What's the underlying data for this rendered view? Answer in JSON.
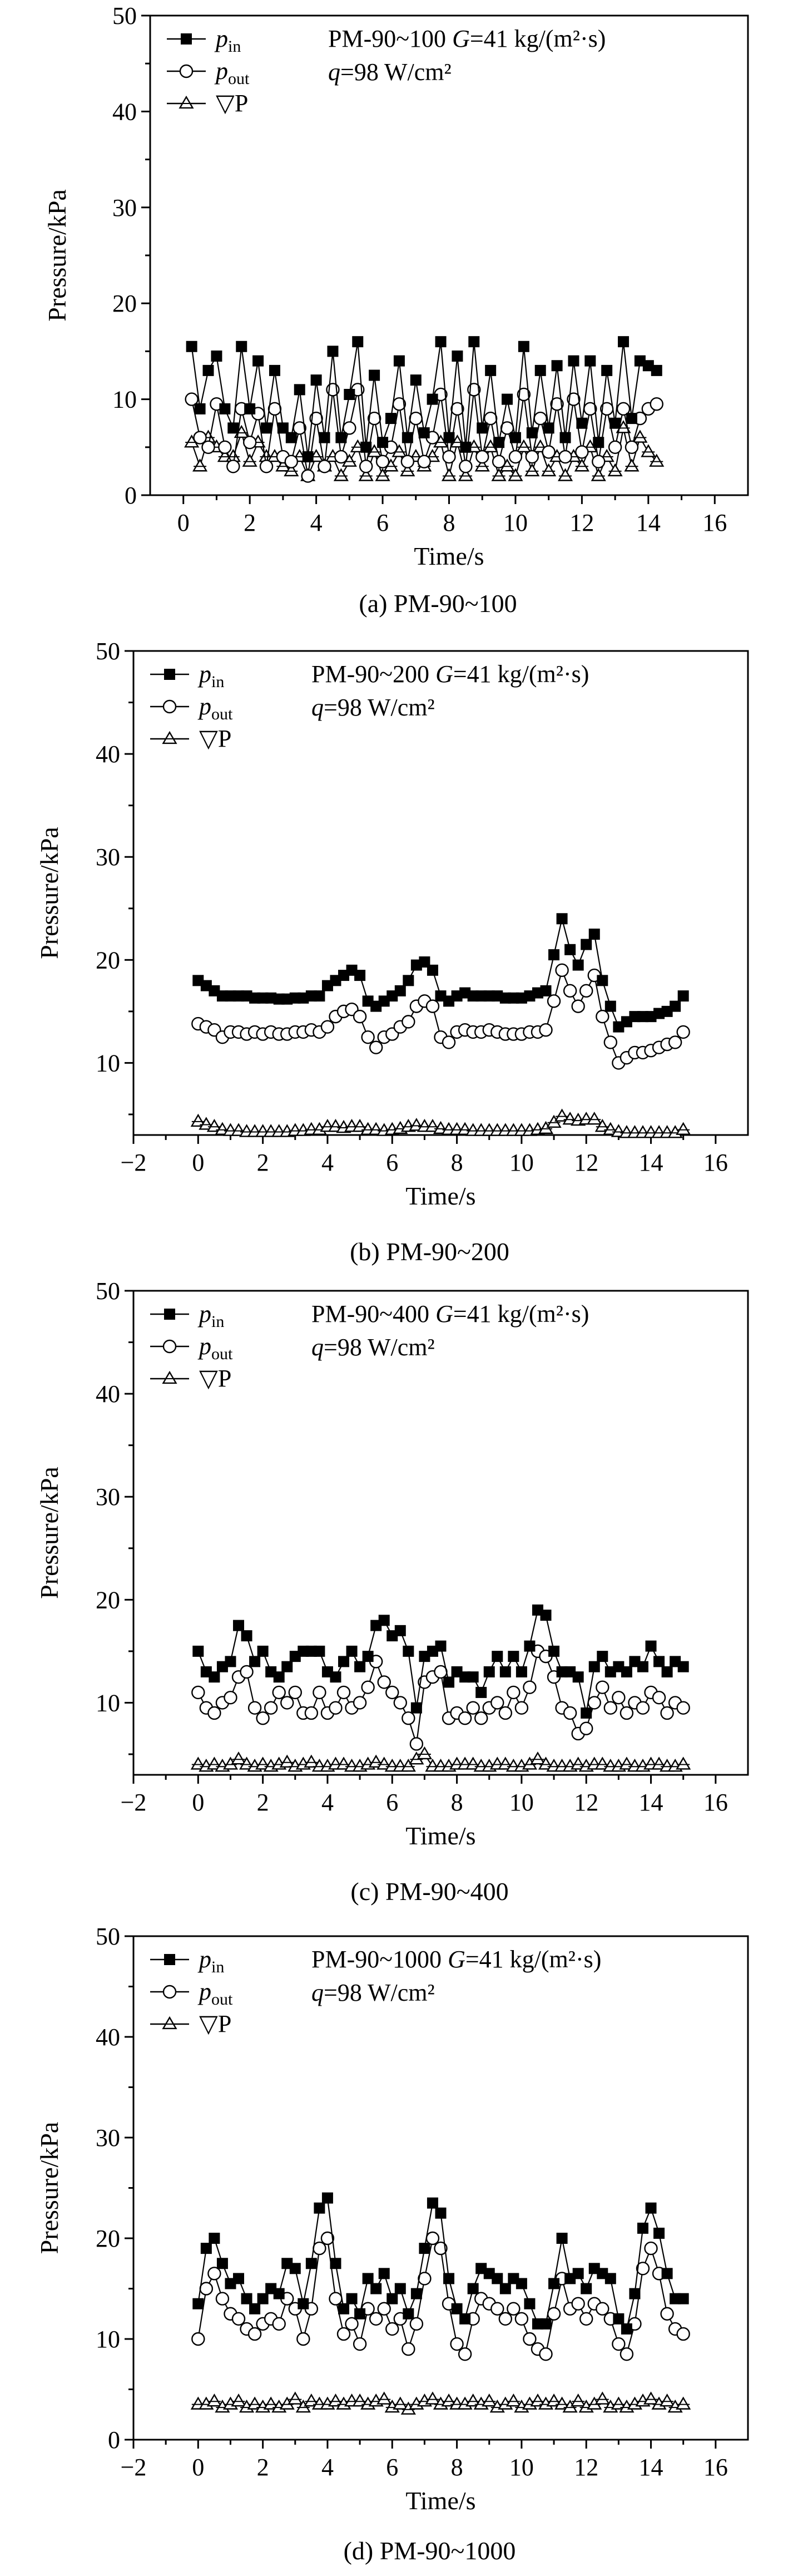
{
  "chart_data": [
    {
      "type": "line",
      "caption": "(a) PM-90~100",
      "xlabel": "Time/s",
      "ylabel": "Pressure/kPa",
      "xlim": [
        -1,
        17
      ],
      "ylim": [
        0,
        50
      ],
      "xticks": [
        0,
        2,
        4,
        6,
        8,
        10,
        12,
        14,
        16
      ],
      "xtick_labels": [
        "0",
        "2",
        "4",
        "6",
        "8",
        "10",
        "12",
        "14",
        "16"
      ],
      "yticks": [
        0,
        10,
        20,
        30,
        40,
        50
      ],
      "ytick_labels": [
        "0",
        "10",
        "20",
        "30",
        "40",
        "50"
      ],
      "annotation": {
        "model": "PM-90~100",
        "g_sym": "G",
        "g_val": "=41 kg/(m²·s)",
        "q_sym": "q",
        "q_val": "=98 W/cm²"
      },
      "legend": [
        {
          "sym": "p",
          "sub": "in"
        },
        {
          "sym": "p",
          "sub": "out"
        },
        {
          "sym": "▽P",
          "sub": ""
        }
      ],
      "series": [
        {
          "name": "p_in",
          "marker": "square",
          "x_start": 0.25,
          "x_step": 0.25,
          "values": [
            15.5,
            9.0,
            13.0,
            14.5,
            9.0,
            7.0,
            15.5,
            9.0,
            14.0,
            7.0,
            13.0,
            7.0,
            6.0,
            11.0,
            4.0,
            12.0,
            6.0,
            15.0,
            6.0,
            10.5,
            16.0,
            5.0,
            12.5,
            5.5,
            8.0,
            14.0,
            6.0,
            12.0,
            6.5,
            10.0,
            16.0,
            6.0,
            14.5,
            5.0,
            16.0,
            7.0,
            13.0,
            5.5,
            10.0,
            6.0,
            15.5,
            6.5,
            13.0,
            7.0,
            13.5,
            6.0,
            14.0,
            7.5,
            14.0,
            5.5,
            13.0,
            7.5,
            16.0,
            8.0,
            14.0,
            13.5,
            13.0
          ]
        },
        {
          "name": "p_out",
          "marker": "circle",
          "x_start": 0.25,
          "x_step": 0.25,
          "values": [
            10.0,
            6.0,
            5.0,
            9.5,
            5.0,
            3.0,
            9.0,
            5.5,
            8.5,
            3.0,
            9.0,
            4.0,
            3.5,
            7.0,
            2.0,
            8.0,
            3.0,
            11.0,
            4.0,
            7.0,
            11.0,
            3.0,
            8.0,
            3.5,
            5.0,
            9.5,
            3.5,
            8.0,
            3.5,
            6.0,
            10.5,
            4.0,
            9.0,
            3.0,
            11.0,
            4.0,
            8.0,
            3.5,
            7.0,
            4.0,
            10.5,
            4.0,
            8.0,
            4.5,
            9.5,
            4.0,
            10.0,
            4.5,
            9.0,
            3.5,
            9.0,
            5.0,
            9.0,
            5.0,
            8.0,
            9.0,
            9.5
          ]
        },
        {
          "name": "dP",
          "marker": "triangle",
          "x_start": 0.25,
          "x_step": 0.25,
          "values": [
            5.5,
            3.0,
            6.0,
            5.0,
            4.0,
            4.0,
            6.5,
            3.5,
            5.5,
            4.0,
            4.0,
            3.0,
            2.5,
            4.0,
            2.0,
            4.0,
            3.0,
            4.0,
            2.0,
            3.5,
            5.0,
            2.0,
            4.5,
            2.0,
            3.0,
            4.5,
            2.5,
            4.0,
            3.0,
            4.0,
            5.5,
            2.0,
            5.5,
            2.0,
            5.0,
            3.0,
            5.0,
            2.0,
            3.0,
            2.0,
            5.0,
            2.5,
            5.0,
            2.5,
            4.0,
            2.0,
            4.0,
            3.0,
            5.0,
            2.0,
            4.0,
            2.5,
            7.0,
            3.0,
            6.0,
            4.5,
            3.5
          ]
        }
      ]
    },
    {
      "type": "line",
      "caption": "(b) PM-90~200",
      "xlabel": "Time/s",
      "ylabel": "Pressure/kPa",
      "xlim": [
        -2,
        17
      ],
      "ylim": [
        3,
        50
      ],
      "xticks": [
        -2,
        0,
        2,
        4,
        6,
        8,
        10,
        12,
        14,
        16
      ],
      "xtick_labels": [
        "−2",
        "0",
        "2",
        "4",
        "6",
        "8",
        "10",
        "12",
        "14",
        "16"
      ],
      "yticks": [
        10,
        20,
        30,
        40,
        50
      ],
      "ytick_labels": [
        "10",
        "20",
        "30",
        "40",
        "50"
      ],
      "annotation": {
        "model": "PM-90~200",
        "g_sym": "G",
        "g_val": "=41 kg/(m²·s)",
        "q_sym": "q",
        "q_val": "=98 W/cm²"
      },
      "legend": [
        {
          "sym": "p",
          "sub": "in"
        },
        {
          "sym": "p",
          "sub": "out"
        },
        {
          "sym": "▽P",
          "sub": ""
        }
      ],
      "series": [
        {
          "name": "p_in",
          "marker": "square",
          "x_start": 0.0,
          "x_step": 0.25,
          "values": [
            18.0,
            17.5,
            17.0,
            16.5,
            16.5,
            16.5,
            16.5,
            16.3,
            16.3,
            16.3,
            16.2,
            16.2,
            16.3,
            16.3,
            16.5,
            16.5,
            17.5,
            18.0,
            18.5,
            19.0,
            18.5,
            16.0,
            15.5,
            16.0,
            16.5,
            17.0,
            18.0,
            19.5,
            19.8,
            19.0,
            16.5,
            16.0,
            16.5,
            16.8,
            16.5,
            16.5,
            16.5,
            16.5,
            16.3,
            16.3,
            16.3,
            16.5,
            16.8,
            17.0,
            20.5,
            24.0,
            21.0,
            19.5,
            21.5,
            22.5,
            18.0,
            15.5,
            13.5,
            14.0,
            14.5,
            14.5,
            14.5,
            14.8,
            15.0,
            15.5,
            16.5
          ]
        },
        {
          "name": "p_out",
          "marker": "circle",
          "x_start": 0.0,
          "x_step": 0.25,
          "values": [
            13.8,
            13.5,
            13.2,
            12.5,
            13.0,
            13.0,
            12.8,
            13.0,
            12.8,
            13.0,
            12.8,
            12.8,
            13.0,
            13.0,
            13.2,
            13.0,
            13.5,
            14.5,
            15.0,
            15.2,
            14.5,
            12.5,
            11.5,
            12.5,
            12.8,
            13.5,
            14.0,
            15.5,
            16.0,
            15.5,
            12.5,
            12.0,
            13.0,
            13.2,
            13.0,
            13.0,
            13.2,
            13.0,
            12.8,
            12.8,
            12.8,
            13.0,
            13.0,
            13.2,
            16.0,
            19.0,
            17.0,
            15.5,
            17.0,
            18.5,
            14.5,
            12.0,
            10.0,
            10.5,
            11.0,
            11.0,
            11.2,
            11.5,
            11.8,
            12.0,
            13.0
          ]
        },
        {
          "name": "dP",
          "marker": "triangle",
          "x_start": 0.0,
          "x_step": 0.25,
          "values": [
            4.3,
            4.0,
            3.8,
            3.5,
            3.4,
            3.4,
            3.3,
            3.3,
            3.3,
            3.3,
            3.3,
            3.3,
            3.4,
            3.4,
            3.5,
            3.5,
            3.8,
            3.8,
            3.7,
            3.8,
            3.8,
            3.5,
            3.5,
            3.4,
            3.5,
            3.6,
            3.8,
            3.9,
            3.8,
            3.8,
            3.6,
            3.5,
            3.5,
            3.5,
            3.4,
            3.4,
            3.4,
            3.4,
            3.4,
            3.4,
            3.4,
            3.4,
            3.5,
            3.6,
            4.2,
            4.8,
            4.5,
            4.4,
            4.5,
            4.5,
            3.8,
            3.5,
            3.3,
            3.2,
            3.2,
            3.2,
            3.2,
            3.2,
            3.2,
            3.2,
            3.5
          ]
        }
      ]
    },
    {
      "type": "line",
      "caption": "(c) PM-90~400",
      "xlabel": "Time/s",
      "ylabel": "Pressure/kPa",
      "xlim": [
        -2,
        17
      ],
      "ylim": [
        3,
        50
      ],
      "xticks": [
        -2,
        0,
        2,
        4,
        6,
        8,
        10,
        12,
        14,
        16
      ],
      "xtick_labels": [
        "−2",
        "0",
        "2",
        "4",
        "6",
        "8",
        "10",
        "12",
        "14",
        "16"
      ],
      "yticks": [
        10,
        20,
        30,
        40,
        50
      ],
      "ytick_labels": [
        "10",
        "20",
        "30",
        "40",
        "50"
      ],
      "annotation": {
        "model": "PM-90~400",
        "g_sym": "G",
        "g_val": "=41 kg/(m²·s)",
        "q_sym": "q",
        "q_val": "=98 W/cm²"
      },
      "legend": [
        {
          "sym": "p",
          "sub": "in"
        },
        {
          "sym": "p",
          "sub": "out"
        },
        {
          "sym": "▽P",
          "sub": ""
        }
      ],
      "series": [
        {
          "name": "p_in",
          "marker": "square",
          "x_start": 0.0,
          "x_step": 0.25,
          "values": [
            15.0,
            13.0,
            12.5,
            13.5,
            14.0,
            17.5,
            16.5,
            14.0,
            15.0,
            13.0,
            12.5,
            13.5,
            14.5,
            15.0,
            15.0,
            15.0,
            13.0,
            12.5,
            14.0,
            15.0,
            13.5,
            14.5,
            17.5,
            18.0,
            16.5,
            17.0,
            15.0,
            9.5,
            14.5,
            15.0,
            15.5,
            12.0,
            13.0,
            12.5,
            12.5,
            11.0,
            13.0,
            14.5,
            13.0,
            14.5,
            13.0,
            15.5,
            19.0,
            18.5,
            15.0,
            13.0,
            13.0,
            12.5,
            9.0,
            13.5,
            14.5,
            13.0,
            13.5,
            13.0,
            14.0,
            13.5,
            15.5,
            14.0,
            13.0,
            14.0,
            13.5
          ]
        },
        {
          "name": "p_out",
          "marker": "circle",
          "x_start": 0.0,
          "x_step": 0.25,
          "values": [
            11.0,
            9.5,
            9.0,
            10.0,
            10.5,
            12.5,
            13.0,
            9.5,
            8.5,
            9.5,
            11.0,
            10.0,
            11.0,
            9.0,
            9.0,
            11.0,
            9.0,
            9.5,
            11.0,
            9.5,
            10.0,
            11.5,
            14.0,
            12.0,
            11.0,
            10.0,
            8.5,
            6.0,
            12.0,
            12.5,
            13.0,
            8.5,
            9.0,
            8.5,
            9.5,
            8.5,
            9.5,
            10.0,
            9.0,
            11.0,
            9.5,
            11.5,
            15.0,
            14.5,
            12.5,
            9.5,
            9.0,
            7.0,
            7.5,
            10.0,
            11.5,
            9.5,
            10.5,
            9.0,
            10.0,
            9.5,
            11.0,
            10.5,
            9.0,
            10.0,
            9.5
          ]
        },
        {
          "name": "dP",
          "marker": "triangle",
          "x_start": 0.0,
          "x_step": 0.25,
          "values": [
            4.0,
            3.8,
            4.0,
            3.8,
            4.0,
            4.5,
            4.0,
            3.8,
            4.0,
            3.8,
            4.0,
            4.2,
            3.8,
            4.0,
            4.2,
            3.8,
            3.8,
            4.0,
            4.0,
            3.8,
            3.8,
            4.0,
            4.2,
            4.0,
            3.8,
            3.8,
            3.8,
            4.5,
            5.0,
            3.8,
            3.8,
            3.8,
            4.0,
            4.0,
            4.0,
            3.8,
            3.8,
            4.0,
            4.0,
            3.8,
            3.8,
            4.0,
            4.5,
            4.0,
            3.8,
            3.8,
            3.8,
            4.0,
            3.8,
            4.0,
            4.0,
            3.8,
            3.8,
            4.0,
            3.8,
            3.8,
            4.0,
            4.0,
            3.8,
            3.8,
            4.0
          ]
        }
      ]
    },
    {
      "type": "line",
      "caption": "(d) PM-90~1000",
      "xlabel": "Time/s",
      "ylabel": "Pressure/kPa",
      "xlim": [
        -2,
        17
      ],
      "ylim": [
        0,
        50
      ],
      "xticks": [
        -2,
        0,
        2,
        4,
        6,
        8,
        10,
        12,
        14,
        16
      ],
      "xtick_labels": [
        "−2",
        "0",
        "2",
        "4",
        "6",
        "8",
        "10",
        "12",
        "14",
        "16"
      ],
      "yticks": [
        0,
        10,
        20,
        30,
        40,
        50
      ],
      "ytick_labels": [
        "0",
        "10",
        "20",
        "30",
        "40",
        "50"
      ],
      "annotation": {
        "model": "PM-90~1000",
        "g_sym": "G",
        "g_val": "=41 kg/(m²·s)",
        "q_sym": "q",
        "q_val": "=98 W/cm²"
      },
      "legend": [
        {
          "sym": "p",
          "sub": "in"
        },
        {
          "sym": "p",
          "sub": "out"
        },
        {
          "sym": "▽P",
          "sub": ""
        }
      ],
      "series": [
        {
          "name": "p_in",
          "marker": "square",
          "x_start": 0.0,
          "x_step": 0.25,
          "values": [
            13.5,
            19.0,
            20.0,
            17.5,
            15.5,
            16.0,
            14.0,
            13.0,
            14.0,
            15.0,
            14.5,
            17.5,
            17.0,
            13.5,
            17.5,
            23.0,
            24.0,
            17.5,
            13.0,
            14.0,
            12.5,
            16.0,
            15.0,
            16.5,
            14.0,
            15.0,
            12.5,
            14.5,
            19.0,
            23.5,
            22.5,
            16.0,
            13.0,
            12.0,
            15.0,
            17.0,
            16.5,
            16.0,
            15.0,
            16.0,
            15.5,
            13.5,
            11.5,
            11.5,
            15.5,
            20.0,
            16.0,
            16.5,
            15.0,
            17.0,
            16.5,
            16.0,
            12.0,
            11.0,
            14.5,
            21.0,
            23.0,
            20.5,
            16.5,
            14.0,
            14.0
          ]
        },
        {
          "name": "p_out",
          "marker": "circle",
          "x_start": 0.0,
          "x_step": 0.25,
          "values": [
            10.0,
            15.0,
            16.5,
            14.0,
            12.5,
            12.0,
            11.0,
            10.5,
            11.5,
            12.0,
            11.5,
            14.0,
            13.0,
            10.0,
            13.0,
            19.0,
            20.0,
            14.0,
            10.5,
            11.5,
            9.5,
            13.0,
            12.0,
            13.0,
            11.0,
            12.0,
            9.0,
            11.5,
            16.0,
            20.0,
            19.0,
            13.5,
            9.5,
            8.5,
            12.0,
            14.0,
            13.5,
            13.0,
            12.0,
            13.0,
            12.0,
            10.0,
            9.0,
            8.5,
            12.5,
            16.0,
            13.0,
            13.5,
            12.0,
            13.5,
            13.0,
            12.0,
            9.5,
            8.5,
            11.5,
            17.0,
            19.0,
            16.5,
            12.5,
            11.0,
            10.5
          ]
        },
        {
          "name": "dP",
          "marker": "triangle",
          "x_start": 0.0,
          "x_step": 0.25,
          "values": [
            3.5,
            3.5,
            3.8,
            3.2,
            3.5,
            3.8,
            3.2,
            3.5,
            3.2,
            3.5,
            3.2,
            3.5,
            4.0,
            3.2,
            3.8,
            3.5,
            3.5,
            3.8,
            3.5,
            3.8,
            3.8,
            3.5,
            3.8,
            4.0,
            3.2,
            3.5,
            3.0,
            3.5,
            3.8,
            4.0,
            3.5,
            3.8,
            3.5,
            3.5,
            3.8,
            3.5,
            3.8,
            3.2,
            3.5,
            3.8,
            3.2,
            3.5,
            3.8,
            3.5,
            3.8,
            3.5,
            3.2,
            3.8,
            3.2,
            3.5,
            4.0,
            3.2,
            3.5,
            3.2,
            3.5,
            3.8,
            4.0,
            3.5,
            3.8,
            3.2,
            3.5
          ]
        }
      ]
    }
  ]
}
